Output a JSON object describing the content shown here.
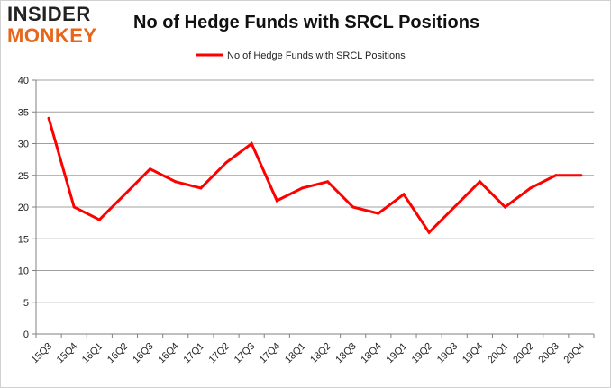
{
  "branding": {
    "logo_line1": "INSIDER",
    "logo_line2": "MONKEY",
    "logo_colors": {
      "line1": "#222222",
      "line2": "#e8651a"
    }
  },
  "chart_data": {
    "type": "line",
    "title": "No of Hedge Funds with SRCL Positions",
    "xlabel": "",
    "ylabel": "",
    "categories": [
      "15Q3",
      "15Q4",
      "16Q1",
      "16Q2",
      "16Q3",
      "16Q4",
      "17Q1",
      "17Q2",
      "17Q3",
      "17Q4",
      "18Q1",
      "18Q2",
      "18Q3",
      "18Q4",
      "19Q1",
      "19Q2",
      "19Q3",
      "19Q4",
      "20Q1",
      "20Q2",
      "20Q3",
      "20Q4"
    ],
    "series": [
      {
        "name": "No of Hedge Funds with SRCL Positions",
        "color": "#ff0000",
        "values": [
          34,
          20,
          18,
          22,
          26,
          24,
          23,
          27,
          30,
          21,
          23,
          24,
          20,
          19,
          22,
          16,
          20,
          24,
          20,
          23,
          25,
          25
        ]
      }
    ],
    "ylim": [
      0,
      40
    ],
    "yticks": [
      0,
      5,
      10,
      15,
      20,
      25,
      30,
      35,
      40
    ],
    "grid": true,
    "legend_position": "top-center"
  }
}
